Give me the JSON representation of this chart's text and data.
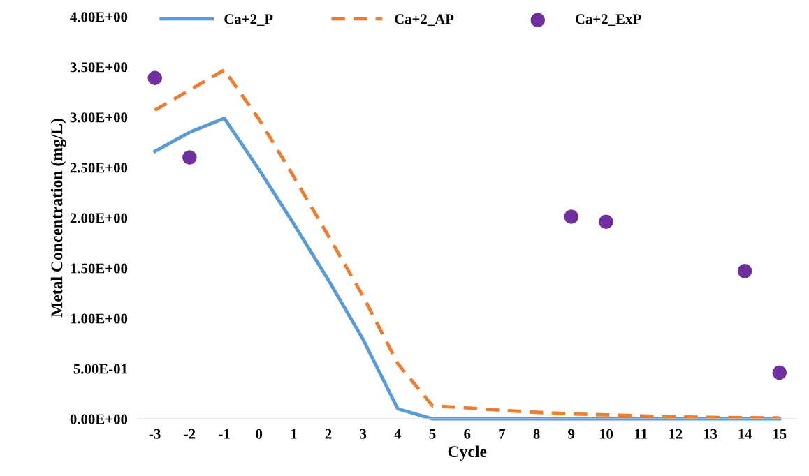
{
  "chart_data": {
    "type": "line",
    "xlabel": "Cycle",
    "ylabel": "Metal Concentration (mg/L)",
    "categories": [
      "-3",
      "-2",
      "-1",
      "0",
      "1",
      "2",
      "3",
      "4",
      "5",
      "6",
      "7",
      "8",
      "9",
      "10",
      "11",
      "12",
      "13",
      "14",
      "15"
    ],
    "series": [
      {
        "name": "Ca+2_P",
        "color": "#5b9bd5",
        "line_style": "solid",
        "values": [
          2.66,
          2.85,
          2.99,
          2.48,
          1.94,
          1.38,
          0.79,
          0.1,
          0,
          0,
          0,
          0,
          0,
          0,
          0,
          0,
          0,
          0,
          0
        ]
      },
      {
        "name": "Ca+2_AP",
        "color": "#ed7d31",
        "line_style": "dashed",
        "values": [
          3.07,
          3.27,
          3.47,
          2.98,
          2.41,
          1.82,
          1.22,
          0.55,
          0.13,
          0.11,
          0.085,
          0.065,
          0.05,
          0.04,
          0.03,
          0.02,
          0.015,
          0.012,
          0.01
        ]
      },
      {
        "name": "Ca+2_ExP",
        "color": "#7030a0",
        "type": "scatter",
        "marker": "circle",
        "values": [
          3.39,
          2.6,
          null,
          null,
          null,
          null,
          null,
          null,
          null,
          null,
          null,
          null,
          2.01,
          1.96,
          null,
          null,
          null,
          1.47,
          0.46
        ]
      }
    ],
    "ylim": [
      0,
      4
    ],
    "yticks": [
      {
        "value": 0,
        "label": "0.00E+00"
      },
      {
        "value": 0.5,
        "label": "5.00E-01"
      },
      {
        "value": 1,
        "label": "1.00E+00"
      },
      {
        "value": 1.5,
        "label": "1.50E+00"
      },
      {
        "value": 2,
        "label": "2.00E+00"
      },
      {
        "value": 2.5,
        "label": "2.50E+00"
      },
      {
        "value": 3,
        "label": "3.00E+00"
      },
      {
        "value": 3.5,
        "label": "3.50E+00"
      },
      {
        "value": 4,
        "label": "4.00E+00"
      }
    ],
    "legend": "top",
    "grid": false
  }
}
